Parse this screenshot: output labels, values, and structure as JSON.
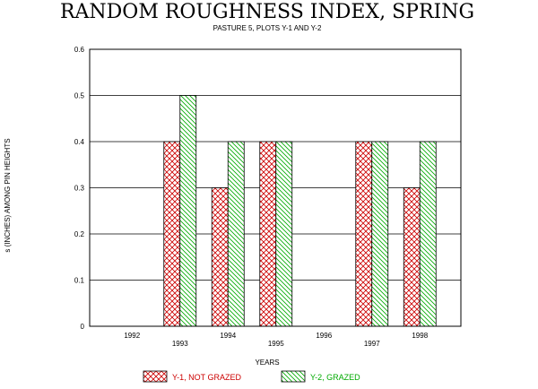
{
  "chart_data": {
    "type": "bar",
    "title": "RANDOM ROUGHNESS INDEX, SPRING",
    "subtitle": "PASTURE 5, PLOTS Y-1 AND Y-2",
    "xlabel": "YEARS",
    "ylabel": "s (INCHES) AMONG PIN HEIGHTS",
    "categories": [
      "1992",
      "1993",
      "1994",
      "1995",
      "1996",
      "1997",
      "1998"
    ],
    "ylim": [
      0,
      0.6
    ],
    "yticks": [
      "0",
      "0.1",
      "0.2",
      "0.3",
      "0.4",
      "0.5",
      "0.6"
    ],
    "grid": true,
    "legend_position": "bottom",
    "series": [
      {
        "name": "Y-1, NOT GRAZED",
        "values": [
          null,
          0.4,
          0.3,
          0.4,
          null,
          0.4,
          0.3
        ],
        "color": "#cc0000",
        "pattern": "crosshatch"
      },
      {
        "name": "Y-2, GRAZED",
        "values": [
          null,
          0.5,
          0.4,
          0.4,
          null,
          0.4,
          0.4
        ],
        "color": "#00aa00",
        "pattern": "diagonal"
      }
    ]
  }
}
